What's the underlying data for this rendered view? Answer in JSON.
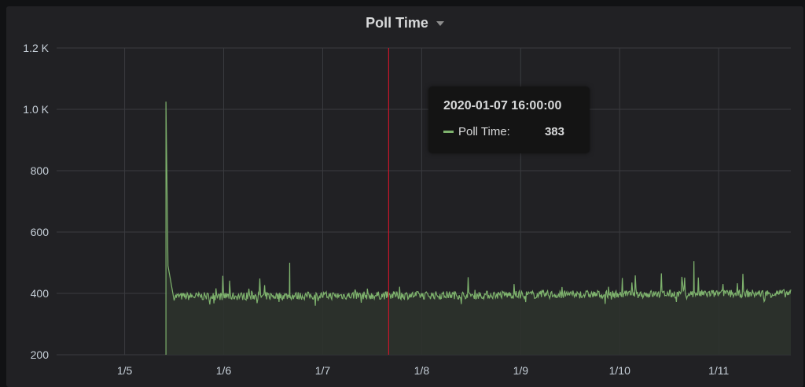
{
  "panel": {
    "title": "Poll Time",
    "title_menu_icon": "caret-down-icon"
  },
  "chart_data": {
    "type": "area",
    "title": "Poll Time",
    "x_tick_labels": [
      "1/5",
      "1/6",
      "1/7",
      "1/8",
      "1/9",
      "1/10",
      "1/11"
    ],
    "y_tick_labels": [
      "200",
      "400",
      "600",
      "800",
      "1.0 K",
      "1.2 K"
    ],
    "ylim": [
      200,
      1200
    ],
    "xlim": [
      "2020-01-04 07:30",
      "2020-01-11 17:30"
    ],
    "grid": true,
    "series": [
      {
        "name": "Poll Time",
        "color": "#7eb26d",
        "points": [
          {
            "x": "2020-01-05 10:00",
            "y": 1025
          },
          {
            "x": "2020-01-05 10:30",
            "y": 490
          },
          {
            "x": "2020-01-05 12:00",
            "y": 460
          },
          {
            "x": "2020-01-06 00:00",
            "y": 392
          },
          {
            "x": "2020-01-06 12:00",
            "y": 388
          },
          {
            "x": "2020-01-06 16:00",
            "y": 500
          },
          {
            "x": "2020-01-07 00:00",
            "y": 395
          },
          {
            "x": "2020-01-07 12:00",
            "y": 398
          },
          {
            "x": "2020-01-07 16:00",
            "y": 383
          },
          {
            "x": "2020-01-08 00:00",
            "y": 400
          },
          {
            "x": "2020-01-08 12:00",
            "y": 395
          },
          {
            "x": "2020-01-09 00:00",
            "y": 398
          },
          {
            "x": "2020-01-09 12:00",
            "y": 400
          },
          {
            "x": "2020-01-10 00:00",
            "y": 397
          },
          {
            "x": "2020-01-10 12:00",
            "y": 402
          },
          {
            "x": "2020-01-10 18:00",
            "y": 505
          },
          {
            "x": "2020-01-11 00:00",
            "y": 400
          },
          {
            "x": "2020-01-11 17:30",
            "y": 405
          }
        ]
      }
    ],
    "hover": {
      "x": "2020-01-07 16:00:00",
      "marker_color": "#c4162a"
    }
  },
  "tooltip": {
    "time": "2020-01-07 16:00:00",
    "series_label": "Poll Time:",
    "value": "383"
  }
}
